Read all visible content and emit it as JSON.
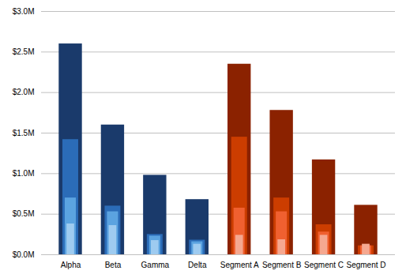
{
  "chart_data": {
    "type": "bar",
    "categories": [
      "Alpha",
      "Beta",
      "Gamma",
      "Delta",
      "Segment A",
      "Segment B",
      "Segment C",
      "Segment D"
    ],
    "stacked": false,
    "series": [
      {
        "values": [
          2600000,
          1600000,
          980000,
          680000,
          2350000,
          1780000,
          1170000,
          610000
        ],
        "colors": [
          "#1a3a6b",
          "#1a3a6b",
          "#1a3a6b",
          "#1a3a6b",
          "#8b2200",
          "#8b2200",
          "#8b2200",
          "#8b2200"
        ]
      },
      {
        "values": [
          1420000,
          600000,
          250000,
          180000,
          1450000,
          700000,
          370000,
          110000
        ],
        "colors": [
          "#2b6cb8",
          "#2b6cb8",
          "#2b6cb8",
          "#2b6cb8",
          "#cc3d00",
          "#cc3d00",
          "#cc3d00",
          "#cc3d00"
        ]
      },
      {
        "values": [
          700000,
          530000,
          230000,
          160000,
          575000,
          530000,
          280000,
          110000
        ],
        "colors": [
          "#5ba3e0",
          "#5ba3e0",
          "#5ba3e0",
          "#5ba3e0",
          "#f06030",
          "#f06030",
          "#f06030",
          "#f06030"
        ]
      },
      {
        "values": [
          380000,
          360000,
          175000,
          130000,
          240000,
          185000,
          240000,
          130000
        ],
        "colors": [
          "#9ecbf0",
          "#9ecbf0",
          "#9ecbf0",
          "#9ecbf0",
          "#f5a890",
          "#f5a890",
          "#f5a890",
          "#f5a890"
        ]
      }
    ],
    "ylim": [
      0,
      3000000
    ],
    "yticks": [
      {
        "value": 0,
        "label": "$0.0M"
      },
      {
        "value": 500000,
        "label": "$0.5M"
      },
      {
        "value": 1000000,
        "label": "$1.0M"
      },
      {
        "value": 1500000,
        "label": "$1.5M"
      },
      {
        "value": 2000000,
        "label": "$2.0M"
      },
      {
        "value": 2500000,
        "label": "$2.5M"
      },
      {
        "value": 3000000,
        "label": "$3.0M"
      }
    ],
    "grid": true
  }
}
